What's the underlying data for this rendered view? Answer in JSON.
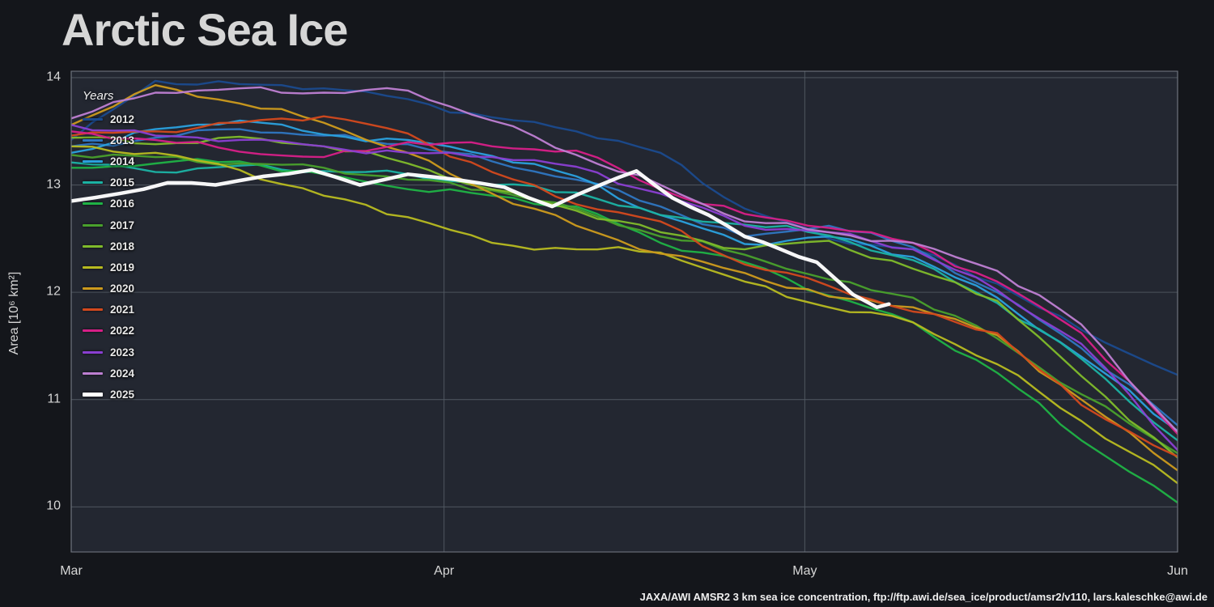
{
  "title": "Arctic Sea Ice",
  "y_axis_label": "Area [10⁶ km²]",
  "legend_title": "Years",
  "footer": "JAXA/AWI AMSR2 3 km sea ice concentration, ftp://ftp.awi.de/sea_ice/product/amsr2/v110, lars.kaleschke@awi.de",
  "colors": {
    "background": "#14161b",
    "plot_background": "#232731",
    "grid": "#525a63",
    "border": "#70767f",
    "axis_text": "#d6d6d6",
    "title_text": "#d6d6d6",
    "current_year": "#ffffff"
  },
  "chart_data": {
    "type": "line",
    "title": "Arctic Sea Ice",
    "ylabel": "Area [10⁶ km²]",
    "x_unit": "days since Mar 1",
    "xlim_days": [
      0,
      92
    ],
    "ylim": [
      9.58,
      14.06
    ],
    "yticks": [
      14,
      13,
      12,
      11,
      10
    ],
    "xticks": [
      {
        "day": 0,
        "label": "Mar"
      },
      {
        "day": 31,
        "label": "Apr"
      },
      {
        "day": 61,
        "label": "May"
      },
      {
        "day": 92,
        "label": "Jun"
      }
    ],
    "grid": true,
    "legend_position": "upper-left",
    "sample_days": [
      0,
      7,
      14,
      21,
      28,
      35,
      42,
      49,
      56,
      63,
      70,
      77,
      84,
      92
    ],
    "series": [
      {
        "name": "2012",
        "color": "#1b4a8c",
        "width": 2.4,
        "values": [
          13.42,
          13.97,
          13.94,
          13.9,
          13.8,
          13.63,
          13.5,
          13.3,
          12.78,
          12.5,
          12.4,
          12.08,
          11.65,
          11.23
        ]
      },
      {
        "name": "2013",
        "color": "#2f76c0",
        "width": 2.4,
        "values": [
          13.36,
          13.44,
          13.52,
          13.46,
          13.38,
          13.22,
          13.05,
          12.8,
          12.52,
          12.62,
          12.42,
          12.0,
          11.48,
          10.76
        ]
      },
      {
        "name": "2014",
        "color": "#2ba0dd",
        "width": 2.4,
        "values": [
          13.3,
          13.52,
          13.6,
          13.47,
          13.42,
          13.27,
          13.08,
          12.72,
          12.45,
          12.52,
          12.33,
          11.95,
          11.4,
          10.71
        ]
      },
      {
        "name": "2015",
        "color": "#1cb2a3",
        "width": 2.4,
        "values": [
          13.21,
          13.12,
          13.18,
          13.13,
          13.1,
          13.0,
          12.93,
          12.72,
          12.63,
          12.53,
          12.3,
          11.9,
          11.38,
          10.62
        ]
      },
      {
        "name": "2016",
        "color": "#1fb245",
        "width": 2.4,
        "values": [
          13.16,
          13.2,
          13.22,
          13.1,
          12.96,
          12.9,
          12.8,
          12.46,
          12.28,
          11.97,
          11.72,
          11.25,
          10.62,
          10.04
        ]
      },
      {
        "name": "2017",
        "color": "#49a02c",
        "width": 2.4,
        "values": [
          13.28,
          13.26,
          13.2,
          13.16,
          13.05,
          12.95,
          12.78,
          12.52,
          12.35,
          12.12,
          11.95,
          11.57,
          11.05,
          10.5
        ]
      },
      {
        "name": "2018",
        "color": "#7fba2b",
        "width": 2.4,
        "values": [
          13.44,
          13.38,
          13.45,
          13.36,
          13.2,
          12.96,
          12.76,
          12.56,
          12.4,
          12.48,
          12.22,
          11.92,
          11.22,
          10.46
        ]
      },
      {
        "name": "2019",
        "color": "#b7ba20",
        "width": 2.4,
        "values": [
          13.36,
          13.3,
          13.14,
          12.9,
          12.7,
          12.46,
          12.4,
          12.37,
          12.1,
          11.86,
          11.72,
          11.33,
          10.8,
          10.22
        ]
      },
      {
        "name": "2020",
        "color": "#cc9a1d",
        "width": 2.4,
        "values": [
          13.56,
          13.93,
          13.76,
          13.58,
          13.3,
          12.92,
          12.62,
          12.36,
          12.18,
          11.96,
          11.86,
          11.6,
          11.0,
          10.34
        ]
      },
      {
        "name": "2021",
        "color": "#d2491d",
        "width": 2.4,
        "values": [
          13.46,
          13.5,
          13.58,
          13.64,
          13.48,
          13.12,
          12.82,
          12.66,
          12.26,
          12.06,
          11.82,
          11.62,
          10.95,
          10.47
        ]
      },
      {
        "name": "2022",
        "color": "#d61f87",
        "width": 2.4,
        "values": [
          13.5,
          13.42,
          13.31,
          13.26,
          13.4,
          13.36,
          13.32,
          12.96,
          12.73,
          12.6,
          12.46,
          12.1,
          11.62,
          10.68
        ]
      },
      {
        "name": "2023",
        "color": "#8a3fd1",
        "width": 2.4,
        "values": [
          13.56,
          13.46,
          13.42,
          13.36,
          13.3,
          13.26,
          13.17,
          12.92,
          12.62,
          12.56,
          12.4,
          12.02,
          11.52,
          10.53
        ]
      },
      {
        "name": "2024",
        "color": "#bd7fd1",
        "width": 2.4,
        "values": [
          13.62,
          13.86,
          13.9,
          13.86,
          13.88,
          13.6,
          13.28,
          13.0,
          12.66,
          12.56,
          12.46,
          12.2,
          11.7,
          10.7
        ]
      },
      {
        "name": "2025",
        "color": "#ffffff",
        "width": 4.5,
        "days": [
          0,
          4,
          8,
          12,
          16,
          20,
          24,
          28,
          32,
          36,
          40,
          44,
          47,
          50,
          53,
          56,
          59,
          62,
          65,
          67,
          68
        ],
        "values": [
          12.85,
          12.92,
          13.02,
          13.0,
          13.08,
          13.14,
          13.0,
          13.1,
          13.05,
          12.98,
          12.8,
          13.0,
          13.13,
          12.88,
          12.72,
          12.52,
          12.4,
          12.28,
          11.98,
          11.86,
          11.89
        ]
      }
    ]
  }
}
